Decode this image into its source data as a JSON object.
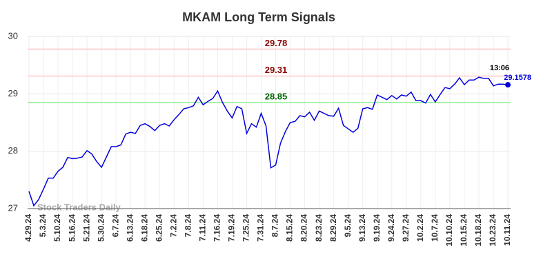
{
  "chart_data": {
    "type": "line",
    "title": "MKAM Long Term Signals",
    "color": "#0000dd",
    "categories": [
      "4.29.24",
      null,
      null,
      "5.3.24",
      null,
      null,
      "5.10.24",
      null,
      null,
      "5.16.24",
      null,
      null,
      "5.21.24",
      null,
      null,
      "5.30.24",
      null,
      null,
      "6.7.24",
      null,
      null,
      "6.13.24",
      null,
      null,
      "6.18.24",
      null,
      null,
      "6.25.24",
      null,
      null,
      "7.2.24",
      null,
      null,
      "7.8.24",
      null,
      null,
      "7.11.24",
      null,
      null,
      "7.16.24",
      null,
      null,
      "7.19.24",
      null,
      null,
      "7.25.24",
      null,
      null,
      "7.31.24",
      null,
      null,
      "8.7.24",
      null,
      null,
      "8.15.24",
      null,
      null,
      "8.20.24",
      null,
      null,
      "8.23.24",
      null,
      null,
      "8.29.24",
      null,
      null,
      "9.5.24",
      null,
      null,
      "9.13.24",
      null,
      null,
      "9.19.24",
      null,
      null,
      "9.24.24",
      null,
      null,
      "9.27.24",
      null,
      null,
      "10.2.24",
      null,
      null,
      "10.7.24",
      null,
      null,
      "10.10.24",
      null,
      null,
      "10.15.24",
      null,
      null,
      "10.18.24",
      null,
      null,
      "10.23.24",
      null,
      null,
      "10.11.24"
    ],
    "values": [
      27.3,
      27.05,
      27.16,
      27.34,
      27.53,
      27.53,
      27.65,
      27.72,
      27.89,
      27.87,
      27.88,
      27.9,
      28.01,
      27.95,
      27.82,
      27.72,
      27.9,
      28.08,
      28.08,
      28.11,
      28.3,
      28.33,
      28.31,
      28.45,
      28.48,
      28.43,
      28.36,
      28.45,
      28.48,
      28.44,
      28.55,
      28.64,
      28.74,
      28.76,
      28.79,
      28.94,
      28.81,
      28.87,
      28.92,
      29.05,
      28.85,
      28.7,
      28.58,
      28.78,
      28.74,
      28.31,
      28.48,
      28.42,
      28.66,
      28.44,
      27.71,
      27.76,
      28.14,
      28.34,
      28.5,
      28.52,
      28.62,
      28.6,
      28.68,
      28.54,
      28.7,
      28.66,
      28.62,
      28.61,
      28.75,
      28.45,
      28.39,
      28.33,
      28.4,
      28.74,
      28.76,
      28.73,
      28.98,
      28.94,
      28.9,
      28.97,
      28.91,
      28.98,
      28.96,
      29.03,
      28.88,
      28.88,
      28.84,
      28.99,
      28.86,
      28.99,
      29.11,
      29.09,
      29.17,
      29.28,
      29.16,
      29.24,
      29.24,
      29.29,
      29.27,
      29.27,
      29.14,
      29.17,
      29.17,
      29.1578
    ],
    "ylim": [
      27,
      30
    ],
    "yticks": [
      27,
      28,
      29,
      30
    ],
    "grid": true,
    "hlines": [
      {
        "value": 29.78,
        "color": "#ffc8c8",
        "label_color": "#8b0000"
      },
      {
        "value": 29.31,
        "color": "#ffc8c8",
        "label_color": "#8b0000"
      },
      {
        "value": 28.85,
        "color": "#90ee90",
        "label_color": "#006400"
      }
    ],
    "last_time": "13:06",
    "watermark": "Stock Traders Daily"
  }
}
